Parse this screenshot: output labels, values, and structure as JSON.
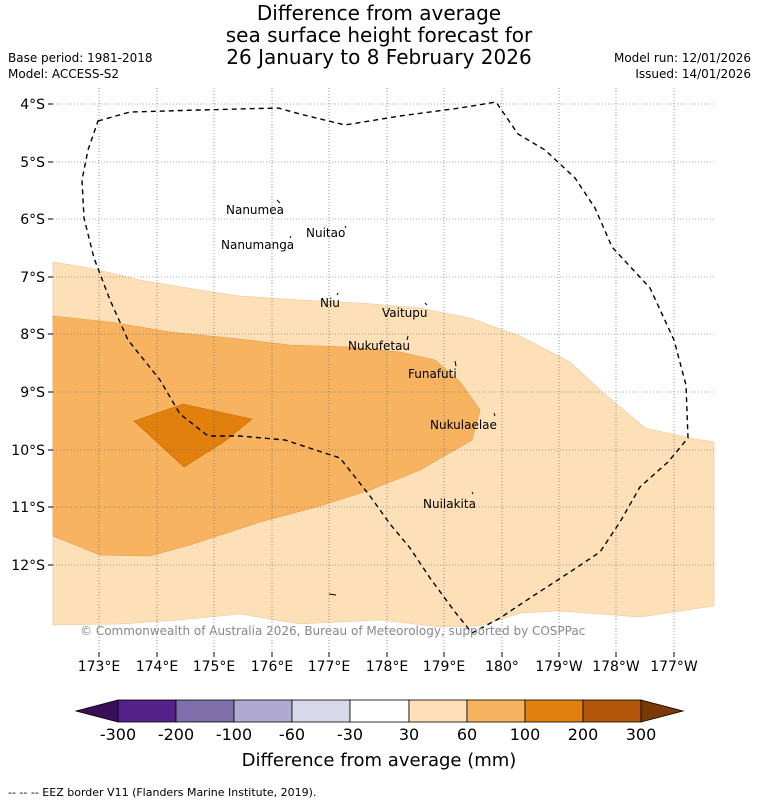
{
  "title": {
    "line1": "Difference from average",
    "line2": "sea surface height forecast for",
    "line3": "26 January to 8 February 2026"
  },
  "meta": {
    "base_period": "Base period: 1981-2018",
    "model": "Model: ACCESS-S2",
    "model_run": "Model run: 12/01/2026",
    "issued": "Issued: 14/01/2026"
  },
  "lat_labels": [
    "4°S",
    "5°S",
    "6°S",
    "7°S",
    "8°S",
    "9°S",
    "10°S",
    "11°S",
    "12°S"
  ],
  "lon_labels": [
    "173°E",
    "174°E",
    "175°E",
    "176°E",
    "177°E",
    "178°E",
    "179°E",
    "180°",
    "179°W",
    "178°W",
    "177°W"
  ],
  "places": [
    {
      "name": "Nanumea"
    },
    {
      "name": "Nuitao"
    },
    {
      "name": "Nanumanga"
    },
    {
      "name": "Niu"
    },
    {
      "name": "Vaitupu"
    },
    {
      "name": "Nukufetau"
    },
    {
      "name": "Funafuti"
    },
    {
      "name": "Nukulaelae"
    },
    {
      "name": "Nuilakita"
    }
  ],
  "copyright": "© Commonwealth of Australia 2026, Bureau of Meteorology, supported by COSPPac",
  "colorbar": {
    "labels": [
      "-300",
      "-200",
      "-100",
      "-60",
      "-30",
      "30",
      "60",
      "100",
      "200",
      "300"
    ],
    "colors": [
      "#3a0f5a",
      "#54208a",
      "#7e6fab",
      "#b0a9d0",
      "#d9d8ea",
      "#ffffff",
      "#fde0b7",
      "#f8b361",
      "#e2800e",
      "#b3580a",
      "#7a3a05"
    ],
    "title": "Difference from average (mm)"
  },
  "footer": "-- -- -- EEZ border V11 (Flanders Marine Institute, 2019)."
}
